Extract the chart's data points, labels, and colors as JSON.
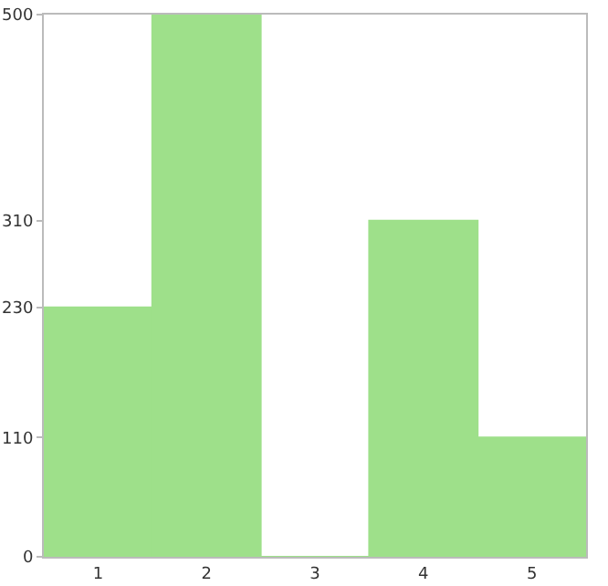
{
  "chart_data": {
    "type": "bar",
    "categories": [
      "1",
      "2",
      "3",
      "4",
      "5"
    ],
    "values": [
      230,
      500,
      0,
      310,
      110
    ],
    "color": "#9ee08a",
    "ylim": [
      0,
      500
    ],
    "yticks": [
      0,
      110,
      230,
      310,
      500
    ],
    "grid": false
  }
}
